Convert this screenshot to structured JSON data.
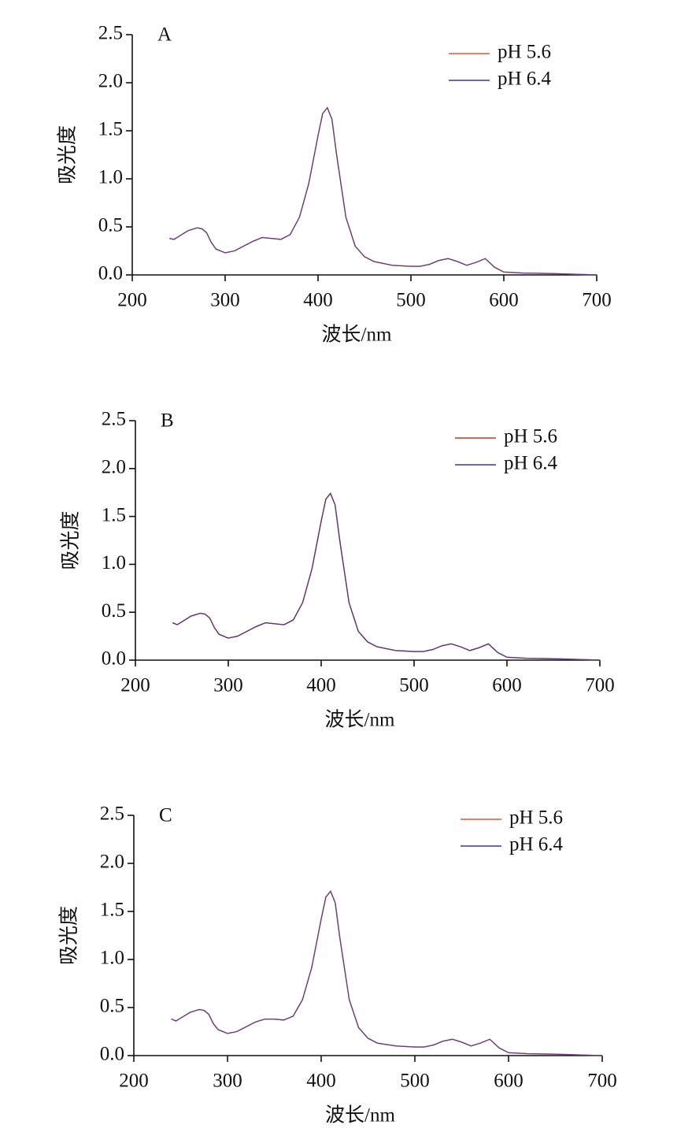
{
  "chart_data": [
    {
      "type": "line",
      "panel_label": "A",
      "x_label": "波长/nm",
      "y_label": "吸光度",
      "x": [
        240,
        245,
        250,
        260,
        270,
        275,
        280,
        285,
        290,
        300,
        310,
        320,
        330,
        340,
        350,
        360,
        370,
        380,
        390,
        400,
        405,
        410,
        415,
        420,
        430,
        440,
        450,
        460,
        480,
        500,
        510,
        520,
        530,
        540,
        550,
        560,
        570,
        580,
        590,
        600,
        620,
        650,
        700
      ],
      "series": [
        {
          "name": "pH 5.6",
          "color": "#e8553a",
          "values": [
            0.38,
            0.37,
            0.4,
            0.46,
            0.49,
            0.48,
            0.44,
            0.34,
            0.27,
            0.23,
            0.25,
            0.3,
            0.35,
            0.39,
            0.38,
            0.37,
            0.42,
            0.6,
            0.95,
            1.45,
            1.68,
            1.74,
            1.62,
            1.25,
            0.6,
            0.3,
            0.19,
            0.14,
            0.1,
            0.09,
            0.09,
            0.11,
            0.15,
            0.17,
            0.14,
            0.1,
            0.13,
            0.17,
            0.08,
            0.03,
            0.02,
            0.015,
            0.0
          ]
        },
        {
          "name": "pH 6.4",
          "color": "#3b3b8f",
          "values": [
            0.38,
            0.37,
            0.4,
            0.46,
            0.49,
            0.48,
            0.44,
            0.34,
            0.27,
            0.23,
            0.25,
            0.3,
            0.35,
            0.39,
            0.38,
            0.37,
            0.42,
            0.6,
            0.95,
            1.45,
            1.68,
            1.74,
            1.62,
            1.25,
            0.6,
            0.3,
            0.19,
            0.14,
            0.1,
            0.09,
            0.09,
            0.11,
            0.15,
            0.17,
            0.14,
            0.1,
            0.13,
            0.17,
            0.08,
            0.03,
            0.02,
            0.015,
            0.0
          ]
        }
      ],
      "xlim": [
        200,
        700
      ],
      "xticks": [
        200,
        300,
        400,
        500,
        600,
        700
      ],
      "ylim": [
        0,
        2.5
      ],
      "yticks": [
        {
          "value": 0,
          "label": "0.0"
        },
        0.5,
        {
          "value": 1,
          "label": "1.0"
        },
        1.5,
        {
          "value": 2,
          "label": "2.0"
        },
        2.5
      ],
      "legend": "upper right"
    },
    {
      "type": "line",
      "panel_label": "B",
      "x_label": "波长/nm",
      "y_label": "吸光度",
      "x": [
        240,
        245,
        250,
        260,
        270,
        275,
        280,
        285,
        290,
        300,
        310,
        320,
        330,
        340,
        350,
        360,
        370,
        380,
        390,
        400,
        405,
        410,
        415,
        420,
        430,
        440,
        450,
        460,
        480,
        500,
        510,
        520,
        530,
        540,
        550,
        560,
        570,
        580,
        590,
        600,
        620,
        650,
        700
      ],
      "series": [
        {
          "name": "pH 5.6",
          "color": "#c0392b",
          "values": [
            0.39,
            0.37,
            0.4,
            0.46,
            0.49,
            0.48,
            0.44,
            0.34,
            0.27,
            0.23,
            0.25,
            0.3,
            0.35,
            0.39,
            0.38,
            0.37,
            0.42,
            0.6,
            0.95,
            1.45,
            1.68,
            1.74,
            1.62,
            1.25,
            0.6,
            0.3,
            0.19,
            0.14,
            0.1,
            0.09,
            0.09,
            0.11,
            0.15,
            0.17,
            0.14,
            0.1,
            0.13,
            0.17,
            0.08,
            0.03,
            0.02,
            0.015,
            0.0
          ]
        },
        {
          "name": "pH 6.4",
          "color": "#3b3b8f",
          "values": [
            0.39,
            0.37,
            0.4,
            0.46,
            0.49,
            0.48,
            0.44,
            0.34,
            0.27,
            0.23,
            0.25,
            0.3,
            0.35,
            0.39,
            0.38,
            0.37,
            0.42,
            0.6,
            0.95,
            1.45,
            1.68,
            1.74,
            1.62,
            1.25,
            0.6,
            0.3,
            0.19,
            0.14,
            0.1,
            0.09,
            0.09,
            0.11,
            0.15,
            0.17,
            0.14,
            0.1,
            0.13,
            0.17,
            0.08,
            0.03,
            0.02,
            0.015,
            0.0
          ]
        }
      ],
      "xlim": [
        200,
        700
      ],
      "xticks": [
        200,
        300,
        400,
        500,
        600,
        700
      ],
      "ylim": [
        0,
        2.5
      ],
      "yticks": [
        {
          "value": 0,
          "label": "0.0"
        },
        0.5,
        {
          "value": 1,
          "label": "1.0"
        },
        1.5,
        {
          "value": 2,
          "label": "2.0"
        },
        2.5
      ],
      "legend": "upper right"
    },
    {
      "type": "line",
      "panel_label": "C",
      "x_label": "波长/nm",
      "y_label": "吸光度",
      "x": [
        240,
        245,
        250,
        260,
        270,
        275,
        280,
        285,
        290,
        300,
        310,
        320,
        330,
        340,
        350,
        360,
        370,
        380,
        390,
        400,
        405,
        410,
        415,
        420,
        430,
        440,
        450,
        460,
        480,
        500,
        510,
        520,
        530,
        540,
        550,
        560,
        570,
        580,
        590,
        600,
        620,
        650,
        700
      ],
      "series": [
        {
          "name": "pH 5.6",
          "color": "#e8553a",
          "values": [
            0.38,
            0.36,
            0.39,
            0.45,
            0.48,
            0.47,
            0.43,
            0.33,
            0.27,
            0.23,
            0.25,
            0.3,
            0.35,
            0.38,
            0.38,
            0.37,
            0.41,
            0.58,
            0.92,
            1.42,
            1.65,
            1.71,
            1.59,
            1.22,
            0.58,
            0.29,
            0.18,
            0.13,
            0.1,
            0.09,
            0.09,
            0.11,
            0.15,
            0.17,
            0.14,
            0.1,
            0.13,
            0.17,
            0.08,
            0.03,
            0.02,
            0.015,
            0.0
          ]
        },
        {
          "name": "pH 6.4",
          "color": "#3b3b8f",
          "values": [
            0.38,
            0.36,
            0.39,
            0.45,
            0.48,
            0.47,
            0.43,
            0.33,
            0.27,
            0.23,
            0.25,
            0.3,
            0.35,
            0.38,
            0.38,
            0.37,
            0.41,
            0.58,
            0.92,
            1.42,
            1.65,
            1.71,
            1.59,
            1.22,
            0.58,
            0.29,
            0.18,
            0.13,
            0.1,
            0.09,
            0.09,
            0.11,
            0.15,
            0.17,
            0.14,
            0.1,
            0.13,
            0.17,
            0.08,
            0.03,
            0.02,
            0.015,
            0.0
          ]
        }
      ],
      "xlim": [
        200,
        700
      ],
      "xticks": [
        200,
        300,
        400,
        500,
        600,
        700
      ],
      "ylim": [
        0,
        2.5
      ],
      "yticks": [
        {
          "value": 0,
          "label": "0.0"
        },
        0.5,
        {
          "value": 1,
          "label": "1.0"
        },
        1.5,
        {
          "value": 2,
          "label": "2.0"
        },
        2.5
      ],
      "legend": "upper right"
    }
  ]
}
